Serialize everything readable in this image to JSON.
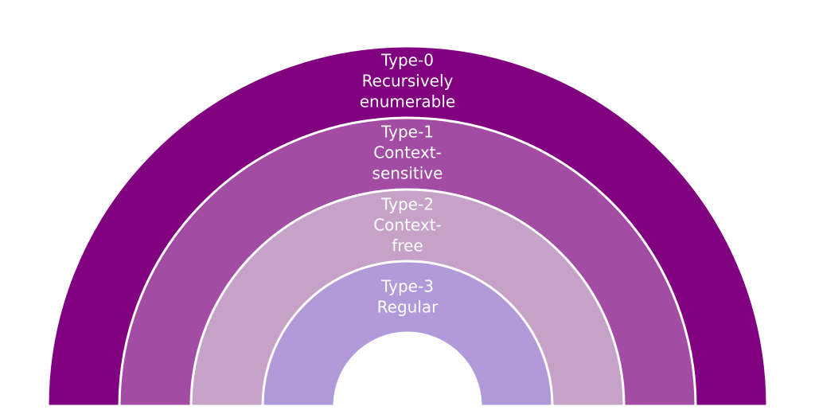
{
  "layers": [
    {
      "label": [
        "Type-0",
        "Recursively",
        "enumerable"
      ]
    },
    {
      "label": [
        "Type-1",
        "Context-",
        "sensitive"
      ]
    },
    {
      "label": [
        "Type-2",
        "Context-",
        "free"
      ]
    },
    {
      "label": [
        "Type-3",
        "Regular"
      ]
    }
  ]
}
